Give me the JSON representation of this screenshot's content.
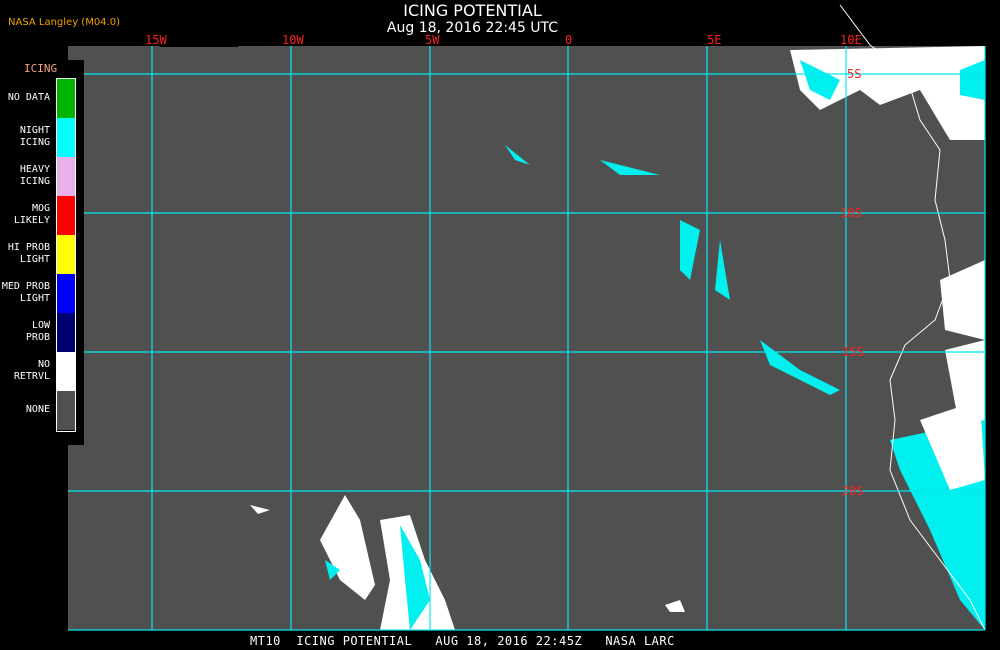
{
  "header": {
    "title": "ICING POTENTIAL",
    "subtitle": "Aug 18, 2016 22:45 UTC",
    "source": "NASA Langley (M04.0)"
  },
  "map": {
    "background_color": "#505050",
    "grid_color": "#00e8f0",
    "longitude_labels": [
      "15W",
      "10W",
      "5W",
      "0",
      "5E",
      "10E"
    ],
    "latitude_labels": [
      "5S",
      "10S",
      "15S",
      "20S"
    ]
  },
  "legend": {
    "title": "ICING",
    "items": [
      {
        "label": "NO DATA",
        "color": "#00b400"
      },
      {
        "label": "NIGHT\nICING",
        "color": "#00ffff"
      },
      {
        "label": "HEAVY\nICING",
        "color": "#e8b0e8"
      },
      {
        "label": "MOG\nLIKELY",
        "color": "#ff0000"
      },
      {
        "label": "HI PROB\nLIGHT",
        "color": "#ffff00"
      },
      {
        "label": "MED PROB\nLIGHT",
        "color": "#0000ff"
      },
      {
        "label": "LOW\nPROB",
        "color": "#000070"
      },
      {
        "label": "NO\nRETRVL",
        "color": "#ffffff"
      },
      {
        "label": "NONE",
        "color": "#505050"
      }
    ]
  },
  "footer": "MT10  ICING POTENTIAL   AUG 18, 2016 22:45Z   NASA LARC"
}
